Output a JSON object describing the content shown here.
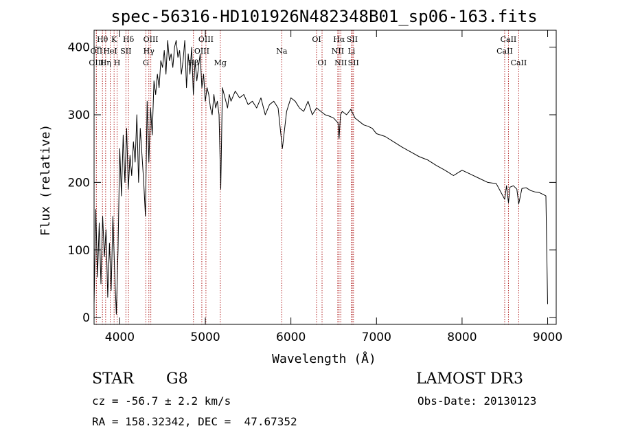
{
  "chart_data": {
    "type": "line",
    "title": "spec-56316-HD101926N482348B01_sp06-163.fits",
    "xlabel": "Wavelength (Å)",
    "ylabel": "Flux (relative)",
    "xlim": [
      3700,
      9100
    ],
    "ylim": [
      -10,
      425
    ],
    "xticks": [
      4000,
      5000,
      6000,
      7000,
      8000,
      9000
    ],
    "yticks": [
      0,
      100,
      200,
      300,
      400
    ],
    "series": [
      {
        "x": [
          3700,
          3720,
          3740,
          3760,
          3780,
          3800,
          3820,
          3840,
          3860,
          3880,
          3900,
          3920,
          3940,
          3960,
          3980,
          4000,
          4020,
          4040,
          4060,
          4080,
          4100,
          4120,
          4140,
          4160,
          4180,
          4200,
          4220,
          4240,
          4260,
          4280,
          4300,
          4320,
          4340,
          4360,
          4380,
          4400,
          4420,
          4440,
          4460,
          4480,
          4500,
          4520,
          4540,
          4560,
          4580,
          4600,
          4620,
          4640,
          4660,
          4680,
          4700,
          4720,
          4740,
          4760,
          4780,
          4800,
          4820,
          4840,
          4860,
          4880,
          4900,
          4920,
          4940,
          4960,
          4980,
          5000,
          5020,
          5040,
          5060,
          5080,
          5100,
          5120,
          5140,
          5160,
          5180,
          5200,
          5220,
          5240,
          5260,
          5280,
          5300,
          5350,
          5400,
          5450,
          5500,
          5550,
          5600,
          5650,
          5700,
          5750,
          5800,
          5850,
          5900,
          5950,
          6000,
          6050,
          6100,
          6150,
          6200,
          6250,
          6300,
          6350,
          6400,
          6450,
          6500,
          6550,
          6563,
          6580,
          6600,
          6650,
          6700,
          6750,
          6800,
          6850,
          6900,
          6950,
          7000,
          7100,
          7200,
          7300,
          7400,
          7500,
          7600,
          7700,
          7800,
          7900,
          8000,
          8100,
          8200,
          8300,
          8400,
          8498,
          8520,
          8542,
          8560,
          8600,
          8640,
          8662,
          8700,
          8750,
          8800,
          8850,
          8900,
          8950,
          8980,
          9000
        ],
        "y": [
          20,
          160,
          60,
          140,
          50,
          150,
          90,
          130,
          30,
          110,
          40,
          150,
          70,
          5,
          100,
          250,
          180,
          270,
          200,
          280,
          190,
          240,
          210,
          260,
          230,
          300,
          200,
          280,
          240,
          200,
          150,
          320,
          230,
          310,
          270,
          350,
          330,
          360,
          340,
          380,
          370,
          395,
          360,
          410,
          380,
          390,
          370,
          400,
          410,
          385,
          395,
          360,
          380,
          410,
          340,
          390,
          360,
          400,
          330,
          380,
          350,
          370,
          390,
          340,
          360,
          320,
          340,
          330,
          310,
          300,
          330,
          310,
          320,
          300,
          190,
          340,
          330,
          320,
          310,
          330,
          320,
          335,
          325,
          330,
          315,
          320,
          310,
          325,
          300,
          315,
          320,
          310,
          250,
          305,
          325,
          320,
          310,
          305,
          320,
          300,
          310,
          305,
          300,
          298,
          295,
          288,
          265,
          300,
          305,
          300,
          308,
          295,
          290,
          285,
          283,
          280,
          272,
          268,
          260,
          252,
          245,
          238,
          233,
          225,
          218,
          210,
          218,
          212,
          206,
          200,
          198,
          175,
          195,
          170,
          193,
          195,
          190,
          168,
          191,
          192,
          188,
          186,
          185,
          182,
          180,
          20
        ]
      }
    ],
    "spectral_lines": [
      {
        "label": "Hθ",
        "x": 3798,
        "row": 0
      },
      {
        "label": "OII",
        "x": 3727,
        "row": 1
      },
      {
        "label": "OIII",
        "x": 3727,
        "row": 2
      },
      {
        "label": "K",
        "x": 3934,
        "row": 0
      },
      {
        "label": "HeI",
        "x": 3889,
        "row": 1
      },
      {
        "label": "Hη",
        "x": 3835,
        "row": 2
      },
      {
        "label": "Hδ",
        "x": 4102,
        "row": 0
      },
      {
        "label": "SII",
        "x": 4072,
        "row": 1
      },
      {
        "label": "H",
        "x": 3969,
        "row": 2
      },
      {
        "label": "OIII",
        "x": 4363,
        "row": 0
      },
      {
        "label": "Hγ",
        "x": 4340,
        "row": 1
      },
      {
        "label": "G",
        "x": 4305,
        "row": 2
      },
      {
        "label": "OIII",
        "x": 5007,
        "row": 0
      },
      {
        "label": "OIII",
        "x": 4959,
        "row": 1
      },
      {
        "label": "Hβ",
        "x": 4861,
        "row": 2
      },
      {
        "label": "Mg",
        "x": 5175,
        "row": 2
      },
      {
        "label": "Na",
        "x": 5893,
        "row": 1
      },
      {
        "label": "OI",
        "x": 6300,
        "row": 0
      },
      {
        "label": "OI",
        "x": 6364,
        "row": 2
      },
      {
        "label": "Hα",
        "x": 6563,
        "row": 0
      },
      {
        "label": "NII",
        "x": 6548,
        "row": 1
      },
      {
        "label": "NII",
        "x": 6583,
        "row": 2
      },
      {
        "label": "SII",
        "x": 6717,
        "row": 0
      },
      {
        "label": "Li",
        "x": 6708,
        "row": 1
      },
      {
        "label": "SII",
        "x": 6731,
        "row": 2
      },
      {
        "label": "CaII",
        "x": 8542,
        "row": 0
      },
      {
        "label": "CaII",
        "x": 8498,
        "row": 1
      },
      {
        "label": "CaII",
        "x": 8662,
        "row": 2
      }
    ],
    "line_color": "#000000",
    "marker_color": "#b22222"
  },
  "info": {
    "class_label": "STAR",
    "subclass": "G8",
    "survey": "LAMOST DR3",
    "redshift": "cz = -56.7 ± 2.2 km/s",
    "obs_date": "Obs-Date: 20130123",
    "coords": "RA = 158.32342, DEC =  47.67352"
  }
}
